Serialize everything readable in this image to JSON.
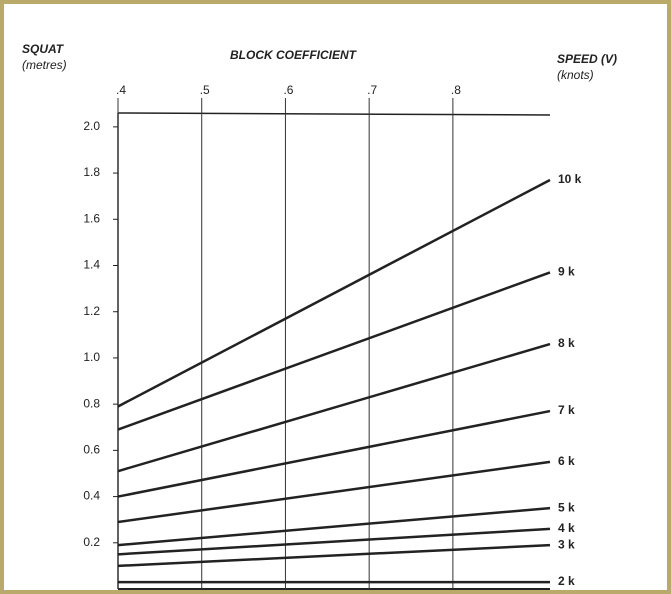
{
  "chart_data": {
    "type": "line",
    "title": "BLOCK COEFFICIENT",
    "ylabel": "SQUAT",
    "yunit": "(metres)",
    "series_title": "SPEED (V)",
    "series_unit": "(knots)",
    "x": [
      0.4,
      0.916
    ],
    "xlim": [
      0.4,
      0.916
    ],
    "xticks": [
      {
        "value": 0.4,
        "label": ".4"
      },
      {
        "value": 0.5,
        "label": ".5"
      },
      {
        "value": 0.6,
        "label": ".6"
      },
      {
        "value": 0.7,
        "label": ".7"
      },
      {
        "value": 0.8,
        "label": ".8"
      }
    ],
    "ylim": [
      0,
      2.06
    ],
    "yticks": [
      0.2,
      0.4,
      0.6,
      0.8,
      {
        "value": 1,
        "label": "1.0"
      },
      1.2,
      1.4,
      1.6,
      1.8,
      {
        "value": 2,
        "label": "2.0"
      }
    ],
    "grid": true,
    "series": [
      {
        "name": "10 k",
        "color": "#222222",
        "values": [
          0.79,
          1.77
        ]
      },
      {
        "name": "9 k",
        "color": "#222222",
        "values": [
          0.69,
          1.37
        ]
      },
      {
        "name": "8 k",
        "color": "#222222",
        "values": [
          0.51,
          1.06
        ]
      },
      {
        "name": "7 k",
        "color": "#222222",
        "values": [
          0.4,
          0.77
        ]
      },
      {
        "name": "6 k",
        "color": "#222222",
        "values": [
          0.29,
          0.55
        ]
      },
      {
        "name": "5 k",
        "color": "#222222",
        "values": [
          0.19,
          0.35
        ]
      },
      {
        "name": "4 k",
        "color": "#222222",
        "values": [
          0.15,
          0.26
        ]
      },
      {
        "name": "3 k",
        "color": "#222222",
        "values": [
          0.1,
          0.19
        ]
      },
      {
        "name": "2 k",
        "color": "#222222",
        "values": [
          0.03,
          0.03
        ]
      }
    ]
  }
}
